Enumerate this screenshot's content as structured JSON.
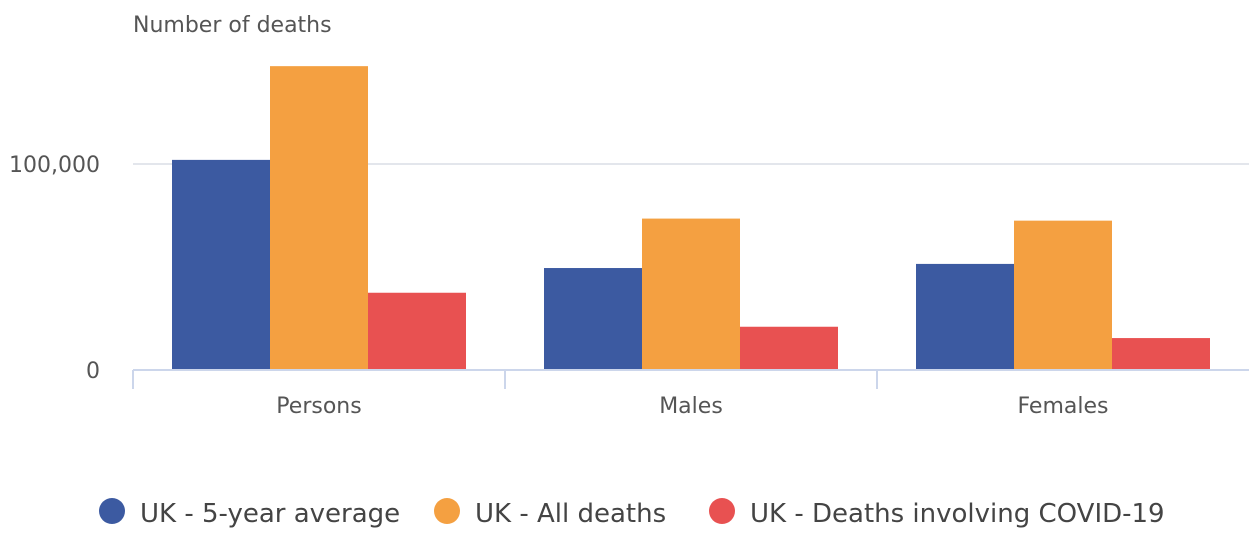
{
  "chart_data": {
    "type": "bar",
    "title": "",
    "ylabel": "Number of deaths",
    "xlabel": "",
    "categories": [
      "Persons",
      "Males",
      "Females"
    ],
    "ylim": [
      0,
      150000
    ],
    "yticks": [
      0,
      100000
    ],
    "ytick_labels": [
      "0",
      "100,000"
    ],
    "grid": true,
    "legend_position": "bottom",
    "series": [
      {
        "name": "UK - 5-year average",
        "color": "#3c5aa1",
        "values": [
          102000,
          49500,
          51500
        ]
      },
      {
        "name": "UK - All deaths",
        "color": "#f4a041",
        "values": [
          147500,
          73500,
          72500
        ]
      },
      {
        "name": "UK - Deaths involving COVID-19",
        "color": "#e85151",
        "values": [
          37500,
          21000,
          15500
        ]
      }
    ]
  }
}
